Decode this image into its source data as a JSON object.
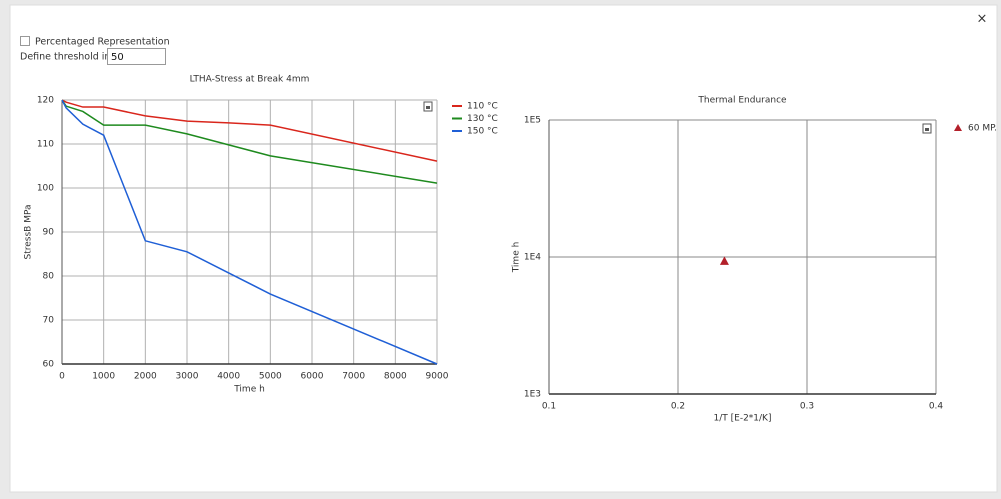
{
  "dialog": {
    "checkbox_label": "Percentaged Representation",
    "threshold_label": "Define threshold in %:",
    "threshold_value": 50,
    "close": "×"
  },
  "chart_data": [
    {
      "type": "line",
      "title": "LTHA-Stress at Break 4mm",
      "xlabel": "Time h",
      "ylabel": "StressB MPa",
      "x": [
        0,
        100,
        500,
        1000,
        2000,
        3000,
        4000,
        5000,
        9000
      ],
      "series": [
        {
          "name": "110 °C",
          "color": "#d9261c",
          "values": [
            120,
            119.5,
            118.4,
            118.4,
            116.4,
            115.2,
            114.8,
            114.3,
            106.1
          ]
        },
        {
          "name": "130 °C",
          "color": "#1e8a1e",
          "values": [
            120,
            118.6,
            117.4,
            114.3,
            114.3,
            112.3,
            109.8,
            107.3,
            101.1
          ]
        },
        {
          "name": "150 °C",
          "color": "#1f5fd6",
          "values": [
            120,
            118.2,
            114.5,
            112,
            88,
            85.5,
            80.7,
            75.9,
            60
          ]
        }
      ],
      "xlim": [
        0,
        9000
      ],
      "xticks": [
        0,
        1000,
        2000,
        3000,
        4000,
        5000,
        6000,
        7000,
        8000,
        9000
      ],
      "ylim": [
        60,
        120
      ],
      "yticks": [
        60,
        70,
        80,
        90,
        100,
        110,
        120
      ],
      "grid": true,
      "legend": "right"
    },
    {
      "type": "scatter",
      "title": "Thermal Endurance",
      "xlabel": "1/T [E-2*1/K]",
      "ylabel": "Time h",
      "series": [
        {
          "name": "60 MP.",
          "color": "#b3202a",
          "marker": "triangle",
          "x": [
            0.236
          ],
          "values": [
            9300
          ]
        }
      ],
      "xlim": [
        0.1,
        0.4
      ],
      "xticks": [
        0.1,
        0.2,
        0.3,
        0.4
      ],
      "ylim": [
        1000,
        100000
      ],
      "yscale": "log",
      "yticks": [
        {
          "value": 1000,
          "label": "1E3"
        },
        {
          "value": 10000,
          "label": "1E4"
        },
        {
          "value": 100000,
          "label": "1E5"
        }
      ],
      "grid": true,
      "legend": "right"
    }
  ]
}
